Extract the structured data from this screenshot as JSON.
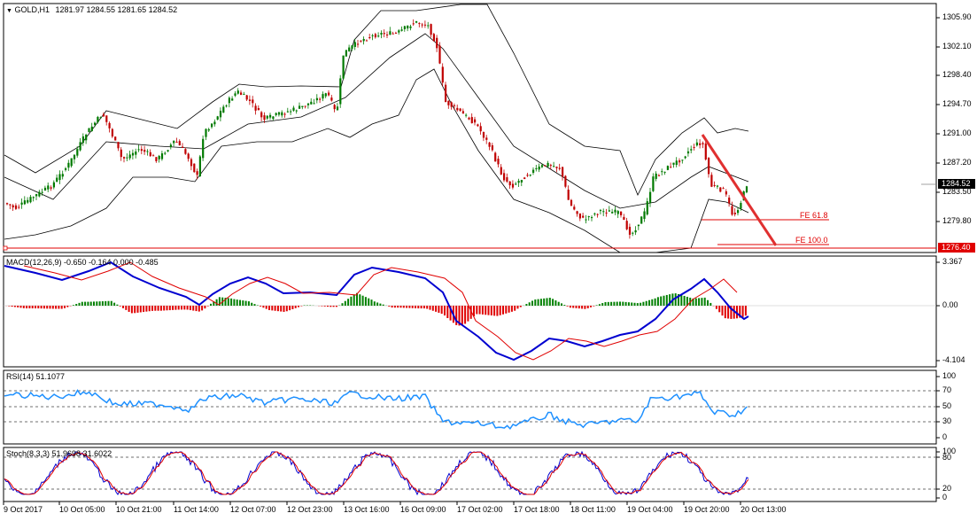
{
  "header": {
    "arrow_icon": "triangle-down-icon",
    "symbol": "GOLD,H1",
    "ohlc": "1281.97 1284.55 1281.65 1284.52"
  },
  "price_pane": {
    "y_ticks": [
      "1305.90",
      "1302.10",
      "1298.40",
      "1294.70",
      "1291.00",
      "1287.20",
      "1283.50",
      "1279.80"
    ],
    "current_price": "1284.52",
    "level_price": "1276.40",
    "fe_618": "FE 61.8",
    "fe_100": "FE 100.0"
  },
  "macd_pane": {
    "label": "MACD(12,26,9) -0.650 -0.164 0.000 -0.485",
    "y_ticks": [
      "3.367",
      "0.00",
      "-4.104"
    ]
  },
  "rsi_pane": {
    "label": "RSI(14) 51.1077",
    "y_ticks": [
      "100",
      "70",
      "50",
      "30",
      "0"
    ]
  },
  "stoch_pane": {
    "label": "Stoch(8,3,3) 51.9698 31.6022",
    "y_ticks": [
      "100",
      "80",
      "20",
      "0"
    ]
  },
  "x_axis": {
    "labels": [
      "9 Oct 2017",
      "10 Oct 05:00",
      "10 Oct 21:00",
      "11 Oct 14:00",
      "12 Oct 07:00",
      "12 Oct 23:00",
      "13 Oct 16:00",
      "16 Oct 09:00",
      "17 Oct 02:00",
      "17 Oct 18:00",
      "18 Oct 11:00",
      "19 Oct 04:00",
      "19 Oct 20:00",
      "20 Oct 13:00"
    ]
  },
  "colors": {
    "bull": "#007a00",
    "bear": "#c00000",
    "macd_line": "#0000d0",
    "signal_line": "#e00000",
    "hist_pos": "#008000",
    "hist_neg": "#e00000",
    "rsi_line": "#1e90ff",
    "trend_line": "#e03030",
    "level_line": "#e00000"
  }
}
